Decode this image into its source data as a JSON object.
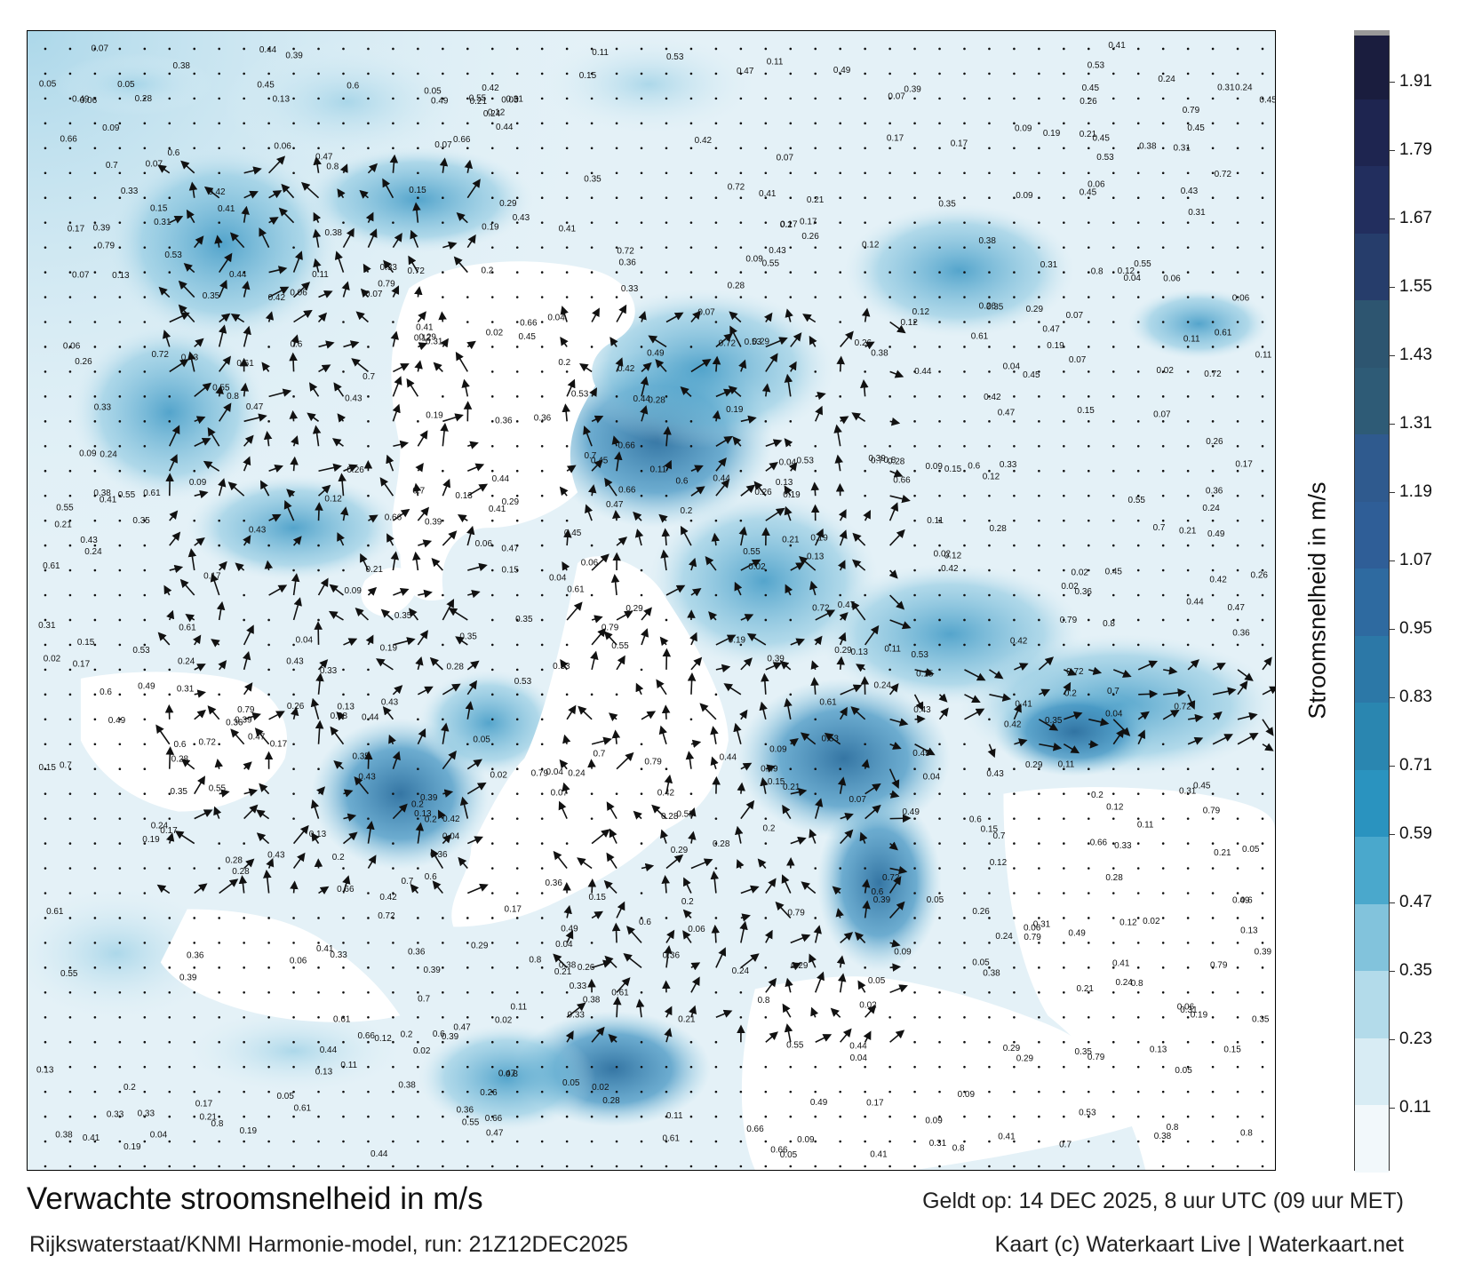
{
  "title": "Verwachte stroomsnelheid in m/s",
  "source": "Rijkswaterstaat/KNMI Harmonie-model, run: 21Z12DEC2025",
  "valid": "Geldt op: 14 DEC 2025, 8 uur UTC (09 uur MET)",
  "credit": "Kaart (c) Waterkaart Live | Waterkaart.net",
  "colorbar": {
    "label": "Stroomsnelheid in m/s",
    "ticks": [
      "0.11",
      "0.23",
      "0.35",
      "0.47",
      "0.59",
      "0.71",
      "0.83",
      "0.95",
      "1.07",
      "1.19",
      "1.31",
      "1.43",
      "1.55",
      "1.67",
      "1.79",
      "1.91"
    ],
    "range": [
      0,
      2.0
    ],
    "colors": [
      "#f2f8fb",
      "#d8ecf4",
      "#b3dbea",
      "#82c3dc",
      "#4aa8cc",
      "#2a93bf",
      "#2a86b0",
      "#2c78a7",
      "#2e6aa0",
      "#2f5e97",
      "#2f5a8e",
      "#2e5b76",
      "#2d5570",
      "#263d6b",
      "#222e5e",
      "#1e2550",
      "#1a1d3e"
    ]
  },
  "sample_values": [
    {
      "v": "0.13"
    },
    {
      "v": "0.12"
    },
    {
      "v": "0.15"
    },
    {
      "v": "0.09"
    },
    {
      "v": "0.04"
    },
    {
      "v": "0.06"
    },
    {
      "v": "0.05"
    },
    {
      "v": "0.11"
    },
    {
      "v": "0.2"
    },
    {
      "v": "0.28"
    },
    {
      "v": "0.33"
    },
    {
      "v": "0.26"
    },
    {
      "v": "0.36"
    },
    {
      "v": "0.35"
    },
    {
      "v": "0.24"
    },
    {
      "v": "0.21"
    },
    {
      "v": "0.41"
    },
    {
      "v": "0.42"
    },
    {
      "v": "0.39"
    },
    {
      "v": "0.38"
    },
    {
      "v": "0.44"
    },
    {
      "v": "0.47"
    },
    {
      "v": "0.55"
    },
    {
      "v": "0.49"
    },
    {
      "v": "0.7"
    },
    {
      "v": "0.61"
    },
    {
      "v": "0.72"
    },
    {
      "v": "0.6"
    },
    {
      "v": "0.8"
    },
    {
      "v": "0.79"
    },
    {
      "v": "0.66"
    },
    {
      "v": "0.53"
    },
    {
      "v": "0.45"
    },
    {
      "v": "0.43"
    },
    {
      "v": "0.31"
    },
    {
      "v": "0.29"
    },
    {
      "v": "0.19"
    },
    {
      "v": "0.17"
    },
    {
      "v": "0.07"
    },
    {
      "v": "0.02"
    }
  ]
}
